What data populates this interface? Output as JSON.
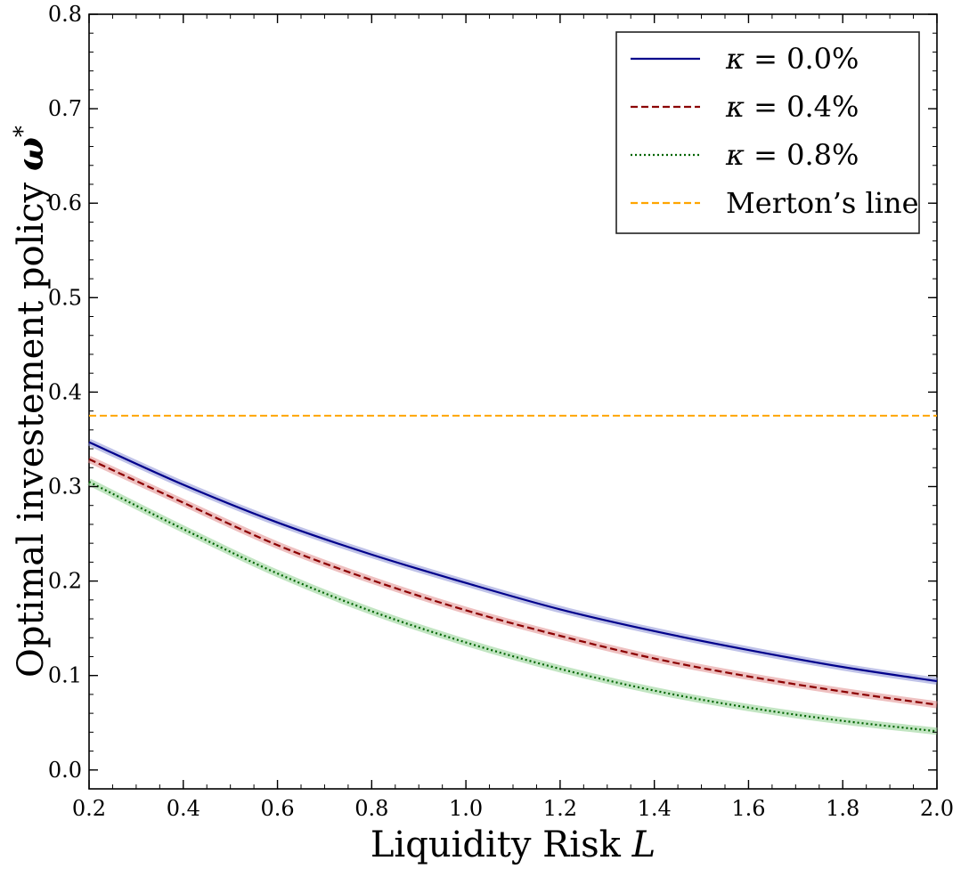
{
  "chart_data": {
    "type": "line",
    "title": "",
    "xlabel": "Liquidity Risk",
    "xlabel_var": "L",
    "ylabel": "Optimal investement policy",
    "ylabel_var": "ω",
    "ylabel_sup": "*",
    "xlim": [
      0.2,
      2.0
    ],
    "ylim": [
      -0.02,
      0.8
    ],
    "xticks": [
      "0.2",
      "0.4",
      "0.6",
      "0.8",
      "1.0",
      "1.2",
      "1.4",
      "1.6",
      "1.8",
      "2.0"
    ],
    "yticks": [
      "0.0",
      "0.1",
      "0.2",
      "0.3",
      "0.4",
      "0.5",
      "0.6",
      "0.7",
      "0.8"
    ],
    "grid": false,
    "legend_position": "top-right",
    "x": [
      0.2,
      0.4,
      0.6,
      0.8,
      1.0,
      1.2,
      1.4,
      1.6,
      1.8,
      2.0
    ],
    "series": [
      {
        "name": "κ = 0.0%",
        "legend_symbol": "κ",
        "legend_value": "= 0.0%",
        "color": "#00008b",
        "dash": "solid",
        "band_color": "#8a8fd6",
        "values": [
          0.347,
          0.302,
          0.262,
          0.228,
          0.198,
          0.17,
          0.147,
          0.127,
          0.109,
          0.094
        ]
      },
      {
        "name": "κ = 0.4%",
        "legend_symbol": "κ",
        "legend_value": "= 0.4%",
        "color": "#8b0000",
        "dash": "dashed",
        "band_color": "#e08c8c",
        "values": [
          0.329,
          0.283,
          0.238,
          0.201,
          0.169,
          0.142,
          0.118,
          0.099,
          0.083,
          0.069
        ]
      },
      {
        "name": "κ = 0.8%",
        "legend_symbol": "κ",
        "legend_value": "= 0.8%",
        "color": "#006400",
        "dash": "dotted",
        "band_color": "#8fcf8f",
        "values": [
          0.305,
          0.255,
          0.208,
          0.168,
          0.135,
          0.107,
          0.084,
          0.066,
          0.052,
          0.041
        ]
      }
    ],
    "reference_line": {
      "name": "Merton’s line",
      "value": 0.375,
      "color": "#ffa500",
      "dash": "dashed"
    }
  }
}
